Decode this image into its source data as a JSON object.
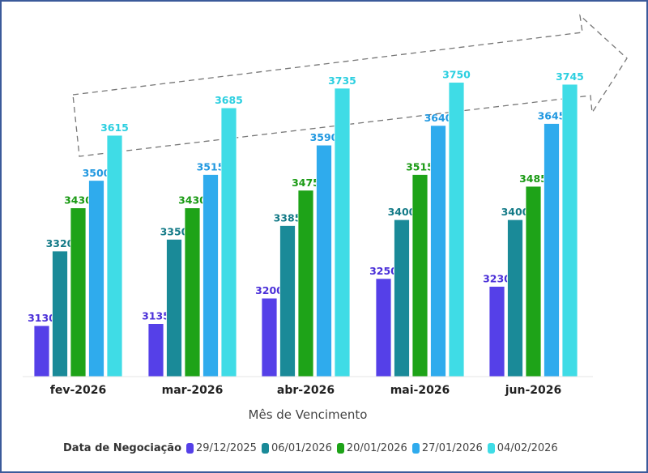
{
  "chart_data": {
    "type": "bar",
    "title": "",
    "xlabel": "Mês de Vencimento",
    "ylabel": "",
    "ylim": [
      3000,
      3800
    ],
    "categories": [
      "fev-2026",
      "mar-2026",
      "abr-2026",
      "mai-2026",
      "jun-2026"
    ],
    "legend_title": "Data de Negociação",
    "legend_position": "bottom",
    "series": [
      {
        "name": "29/12/2025",
        "color": "#5540e8",
        "values": [
          3130,
          3135,
          3200,
          3250,
          3230
        ]
      },
      {
        "name": "06/01/2026",
        "color": "#1a8a98",
        "values": [
          3320,
          3350,
          3385,
          3400,
          3400
        ]
      },
      {
        "name": "20/01/2026",
        "color": "#1ea318",
        "values": [
          3430,
          3430,
          3475,
          3515,
          3485
        ]
      },
      {
        "name": "27/01/2026",
        "color": "#2fabed",
        "values": [
          3500,
          3515,
          3590,
          3640,
          3645
        ]
      },
      {
        "name": "04/02/2026",
        "color": "#3fdce6",
        "values": [
          3615,
          3685,
          3735,
          3750,
          3745
        ]
      }
    ],
    "label_colors": [
      "#4a2fd8",
      "#137a87",
      "#1a9a14",
      "#2198e0",
      "#2ccfe0"
    ],
    "grid": false,
    "annotation": "dashed-trend-arrow"
  }
}
